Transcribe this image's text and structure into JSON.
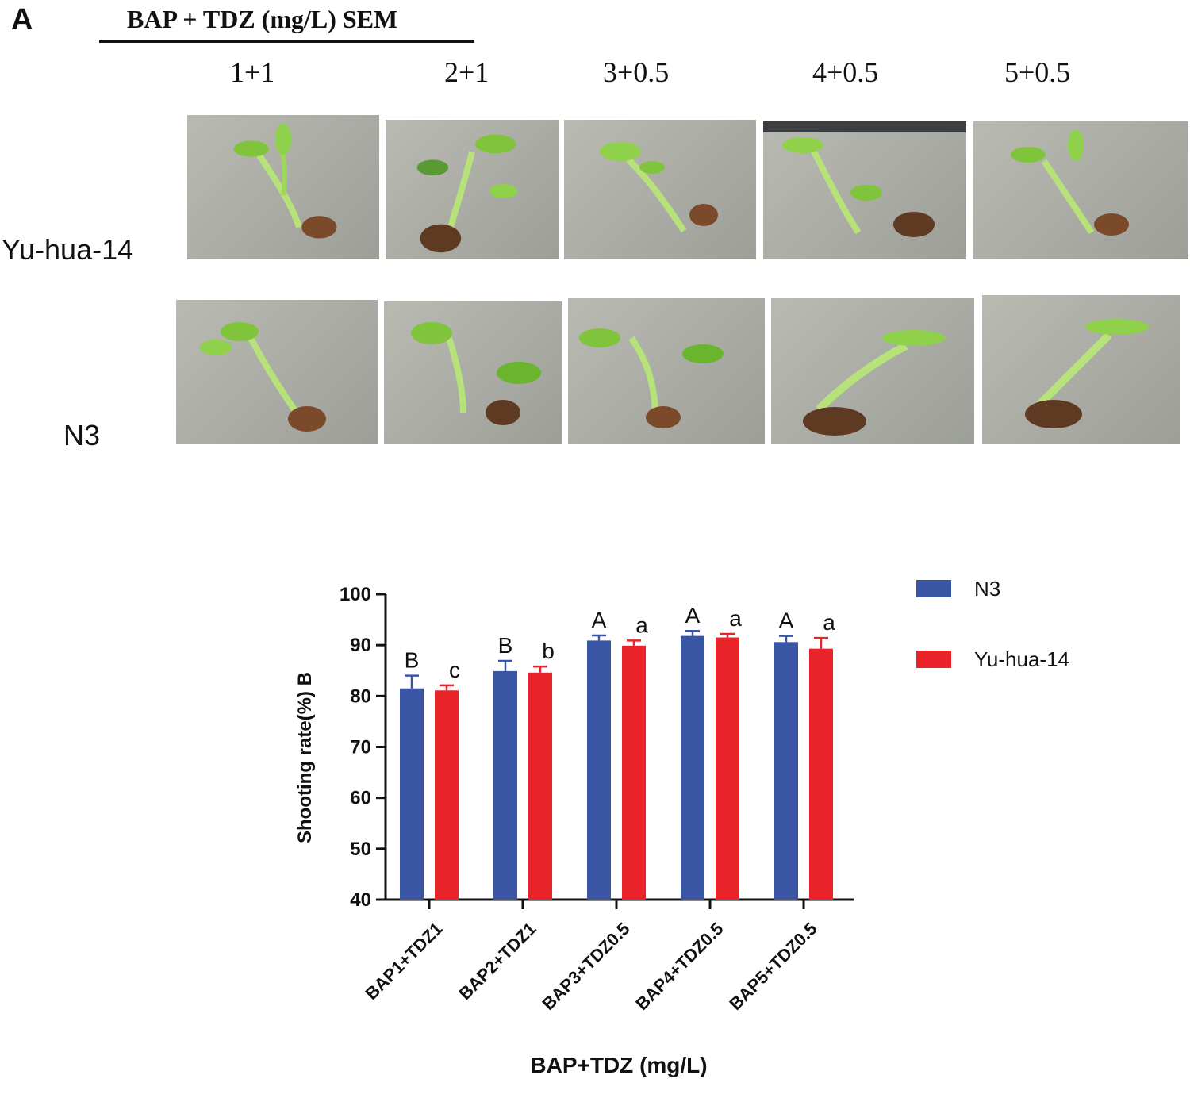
{
  "figure_a": {
    "panel_letter": "A",
    "header_title": "BAP + TDZ (mg/L) SEM",
    "column_labels": [
      "1+1",
      "2+1",
      "3+0.5",
      "4+0.5",
      "5+0.5"
    ],
    "row_labels": [
      "Yu-hua-14",
      "N3"
    ]
  },
  "chart_data": {
    "type": "bar",
    "title": "",
    "xlabel": "BAP+TDZ (mg/L)",
    "ylabel": "Shooting rate(%) B",
    "ylim": [
      40,
      100
    ],
    "yticks": [
      40,
      50,
      60,
      70,
      80,
      90,
      100
    ],
    "categories": [
      "BAP1+TDZ1",
      "BAP2+TDZ1",
      "BAP3+TDZ0.5",
      "BAP4+TDZ0.5",
      "BAP5+TDZ0.5"
    ],
    "series": [
      {
        "name": "N3",
        "color": "#3a55a4",
        "values": [
          81.5,
          84.9,
          90.9,
          91.8,
          90.6
        ],
        "errors": [
          2.5,
          2.0,
          1.0,
          1.0,
          1.2
        ],
        "significance": [
          "B",
          "B",
          "A",
          "A",
          "A"
        ]
      },
      {
        "name": "Yu-hua-14",
        "color": "#e8232a",
        "values": [
          81.1,
          84.6,
          89.9,
          91.5,
          89.3
        ],
        "errors": [
          1.0,
          1.2,
          1.0,
          0.7,
          2.1
        ],
        "significance": [
          "c",
          "b",
          "a",
          "a",
          "a"
        ]
      }
    ],
    "legend_position": "top-right",
    "grid": false
  }
}
